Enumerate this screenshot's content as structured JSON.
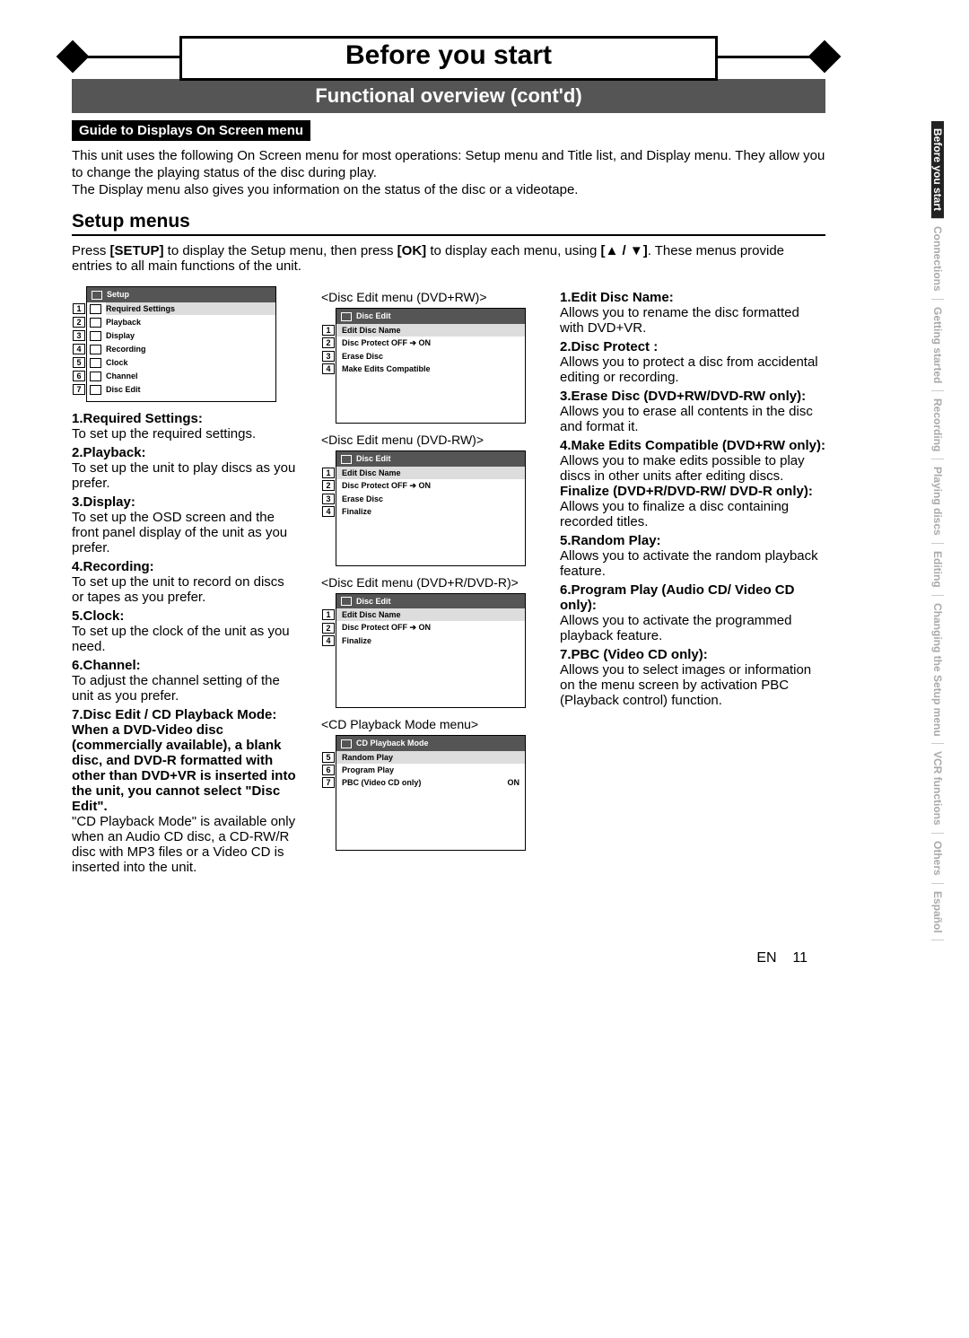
{
  "banner_title": "Before you start",
  "sub_title": "Functional overview (cont'd)",
  "guide_heading": "Guide to Displays On Screen menu",
  "intro_text": "This unit uses the following On Screen menu for most operations: Setup menu and Title list, and Display menu. They allow you to change the playing status of the disc during play.\nThe Display menu also gives you information on the status of the disc or a videotape.",
  "setup_heading": "Setup menus",
  "press_line": "Press [SETUP] to display the Setup menu, then press [OK] to display each menu, using [▲ / ▼]. These menus provide entries to all main functions of the unit.",
  "setup_menu": {
    "title": "Setup",
    "items": [
      {
        "n": "1",
        "label": "Required Settings"
      },
      {
        "n": "2",
        "label": "Playback"
      },
      {
        "n": "3",
        "label": "Display"
      },
      {
        "n": "4",
        "label": "Recording"
      },
      {
        "n": "5",
        "label": "Clock"
      },
      {
        "n": "6",
        "label": "Channel"
      },
      {
        "n": "7",
        "label": "Disc Edit"
      }
    ]
  },
  "left_list": [
    {
      "n": "1.",
      "t": "Required Settings:",
      "d": "To set up the required settings."
    },
    {
      "n": "2.",
      "t": "Playback:",
      "d": "To set up the unit to play discs as you prefer."
    },
    {
      "n": "3.",
      "t": "Display:",
      "d": "To set up the OSD screen and the front panel display of the unit as you prefer."
    },
    {
      "n": "4.",
      "t": "Recording:",
      "d": "To set up the unit to record on discs or tapes as you prefer."
    },
    {
      "n": "5.",
      "t": "Clock:",
      "d": "To set up the clock of the unit as you need."
    },
    {
      "n": "6.",
      "t": "Channel:",
      "d": "To adjust the channel setting of the unit as you prefer."
    },
    {
      "n": "7.",
      "t": "Disc Edit / CD Playback Mode:",
      "d2": "When a DVD-Video disc (commercially available), a blank disc, and DVD-R formatted with other than DVD+VR is inserted into the unit, you cannot select \"Disc Edit\".",
      "d": "\"CD Playback Mode\" is available only when an Audio CD disc, a CD-RW/R disc with MP3 files or a Video CD is inserted into the unit."
    }
  ],
  "disc_menus": [
    {
      "cap": "<Disc Edit menu (DVD+RW)>",
      "title": "Disc Edit",
      "rows": [
        {
          "n": "1",
          "label": "Edit Disc Name"
        },
        {
          "n": "2",
          "label": "Disc Protect OFF ➔ ON"
        },
        {
          "n": "3",
          "label": "Erase Disc"
        },
        {
          "n": "4",
          "label": "Make Edits Compatible"
        }
      ]
    },
    {
      "cap": "<Disc Edit menu (DVD-RW)>",
      "title": "Disc Edit",
      "rows": [
        {
          "n": "1",
          "label": "Edit Disc Name"
        },
        {
          "n": "2",
          "label": "Disc Protect OFF ➔ ON"
        },
        {
          "n": "3",
          "label": "Erase Disc"
        },
        {
          "n": "4",
          "label": "Finalize"
        }
      ]
    },
    {
      "cap": "<Disc Edit menu (DVD+R/DVD-R)>",
      "title": "Disc Edit",
      "rows": [
        {
          "n": "1",
          "label": "Edit Disc Name"
        },
        {
          "n": "2",
          "label": "Disc Protect OFF ➔ ON"
        },
        {
          "n": "4",
          "label": "Finalize"
        }
      ]
    },
    {
      "cap": "<CD Playback Mode menu>",
      "title": "CD Playback Mode",
      "rows": [
        {
          "n": "5",
          "label": "Random Play"
        },
        {
          "n": "6",
          "label": "Program Play"
        },
        {
          "n": "7",
          "label": "PBC (Video CD only)",
          "extra": "ON"
        }
      ]
    }
  ],
  "right_list": [
    {
      "n": "1.",
      "t": "Edit Disc Name:",
      "d": "Allows you to rename the disc formatted with DVD+VR."
    },
    {
      "n": "2.",
      "t": "Disc Protect :",
      "d": "Allows you to protect a disc from accidental editing or recording."
    },
    {
      "n": "3.",
      "t": "Erase Disc (DVD+RW/DVD-RW only):",
      "d": "Allows you to erase all contents in the disc and format it."
    },
    {
      "n": "4.",
      "t": "Make Edits Compatible (DVD+RW only):",
      "d": "Allows you to make edits possible to play discs in other units after editing discs.",
      "t2": "Finalize (DVD+R/DVD-RW/ DVD-R only):",
      "d2": "Allows you to finalize a disc containing recorded titles."
    },
    {
      "n": "5.",
      "t": "Random Play:",
      "d": "Allows you to activate the random playback feature."
    },
    {
      "n": "6.",
      "t": "Program Play (Audio CD/ Video CD only):",
      "d": "Allows you to activate the programmed playback feature."
    },
    {
      "n": "7.",
      "t": "PBC (Video CD only):",
      "d": "Allows you to select images or information on the menu screen by activation PBC (Playback control) function."
    }
  ],
  "side_tabs": [
    "Before you start",
    "Connections",
    "Getting started",
    "Recording",
    "Playing discs",
    "Editing",
    "Changing the Setup menu",
    "VCR functions",
    "Others",
    "Español"
  ],
  "side_active": 0,
  "footer_label": "EN",
  "footer_page": "11"
}
